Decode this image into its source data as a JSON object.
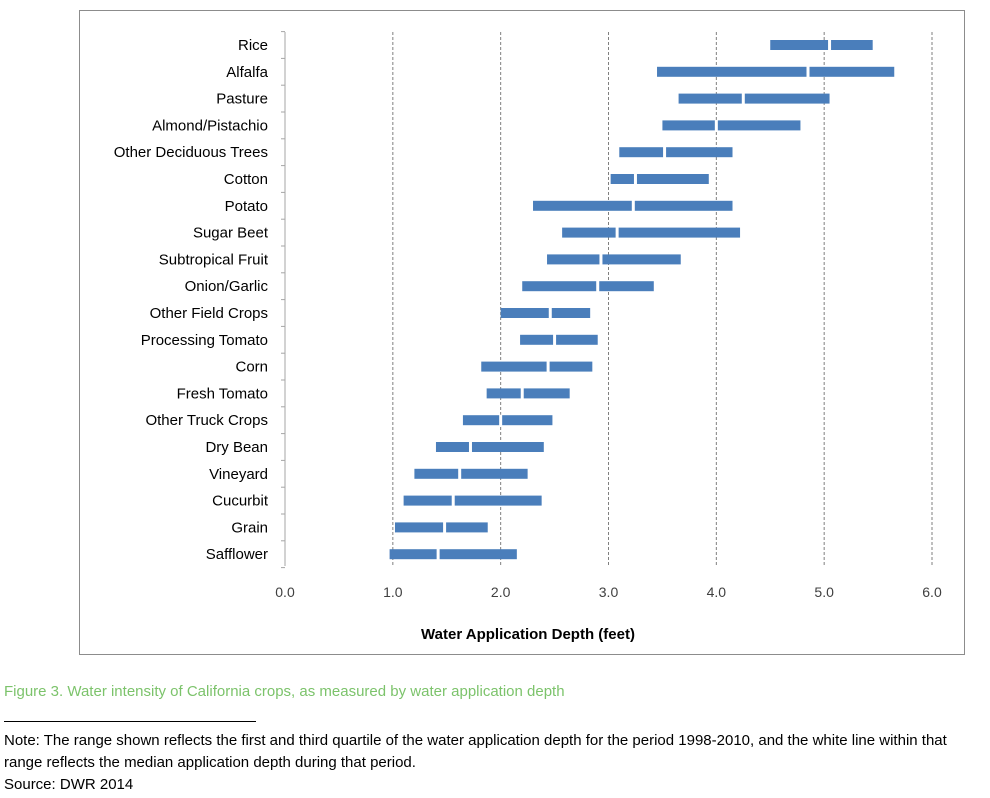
{
  "chart_data": {
    "type": "range-bar",
    "orientation": "horizontal",
    "title": "",
    "xlabel": "Water Application Depth (feet)",
    "ylabel": "",
    "xlim": [
      0.0,
      6.0
    ],
    "xticks": [
      "0.0",
      "1.0",
      "2.0",
      "3.0",
      "4.0",
      "5.0",
      "6.0"
    ],
    "grid": "vertical dashed",
    "series": [
      {
        "crop": "Rice",
        "q1": 4.5,
        "median": 5.05,
        "q3": 5.45
      },
      {
        "crop": "Alfalfa",
        "q1": 3.45,
        "median": 4.85,
        "q3": 5.65
      },
      {
        "crop": "Pasture",
        "q1": 3.65,
        "median": 4.25,
        "q3": 5.05
      },
      {
        "crop": "Almond/Pistachio",
        "q1": 3.5,
        "median": 4.0,
        "q3": 4.78
      },
      {
        "crop": "Other Deciduous Trees",
        "q1": 3.1,
        "median": 3.52,
        "q3": 4.15
      },
      {
        "crop": "Cotton",
        "q1": 3.02,
        "median": 3.25,
        "q3": 3.93
      },
      {
        "crop": "Potato",
        "q1": 2.3,
        "median": 3.23,
        "q3": 4.15
      },
      {
        "crop": "Sugar Beet",
        "q1": 2.57,
        "median": 3.08,
        "q3": 4.22
      },
      {
        "crop": "Subtropical Fruit",
        "q1": 2.43,
        "median": 2.93,
        "q3": 3.67
      },
      {
        "crop": "Onion/Garlic",
        "q1": 2.2,
        "median": 2.9,
        "q3": 3.42
      },
      {
        "crop": "Other Field Crops",
        "q1": 2.0,
        "median": 2.46,
        "q3": 2.83
      },
      {
        "crop": "Processing Tomato",
        "q1": 2.18,
        "median": 2.5,
        "q3": 2.9
      },
      {
        "crop": "Corn",
        "q1": 1.82,
        "median": 2.44,
        "q3": 2.85
      },
      {
        "crop": "Fresh Tomato",
        "q1": 1.87,
        "median": 2.2,
        "q3": 2.64
      },
      {
        "crop": "Other Truck Crops",
        "q1": 1.65,
        "median": 2.0,
        "q3": 2.48
      },
      {
        "crop": "Dry Bean",
        "q1": 1.4,
        "median": 1.72,
        "q3": 2.4
      },
      {
        "crop": "Vineyard",
        "q1": 1.2,
        "median": 1.62,
        "q3": 2.25
      },
      {
        "crop": "Cucurbit",
        "q1": 1.1,
        "median": 1.56,
        "q3": 2.38
      },
      {
        "crop": "Grain",
        "q1": 1.02,
        "median": 1.48,
        "q3": 1.88
      },
      {
        "crop": "Safflower",
        "q1": 0.97,
        "median": 1.42,
        "q3": 2.15
      }
    ],
    "colors": {
      "bar": "#4a7ebb",
      "median_line": "#ffffff",
      "grid": "#7f7f7f",
      "axis_text": "#404040"
    }
  },
  "caption": "Figure 3. Water intensity of California crops, as measured by water application depth",
  "note": "Note: The range shown reflects the first and third quartile of the water application depth for the period 1998-2010, and the white line within that range reflects the median application depth during that period.",
  "source": "Source: DWR 2014",
  "caption_color": "#7cc36b"
}
